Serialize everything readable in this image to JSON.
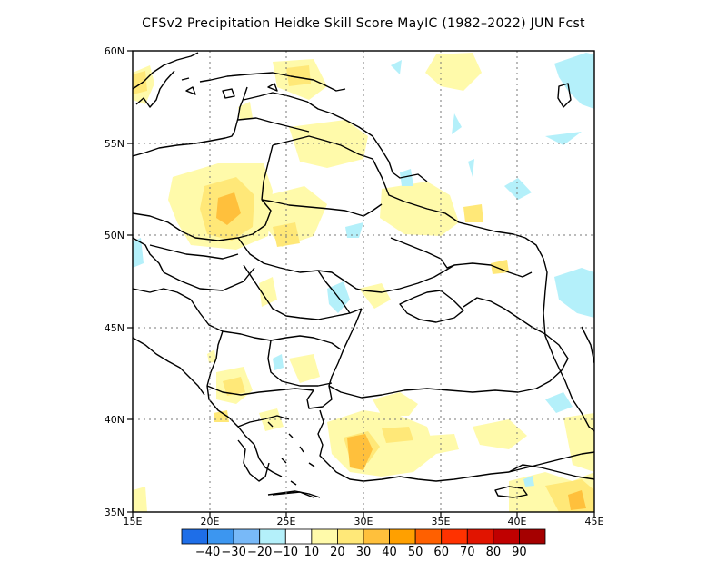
{
  "title": "CFSv2  Precipitation Heidke Skill Score MayIC (1982–2022) JUN Fcst",
  "map": {
    "lon_range": [
      15,
      45
    ],
    "lat_range": [
      35,
      60
    ],
    "lon_ticks": [
      "15E",
      "20E",
      "25E",
      "30E",
      "35E",
      "40E",
      "45E"
    ],
    "lat_ticks": [
      "35N",
      "40N",
      "45N",
      "50N",
      "55N",
      "60N"
    ],
    "gridlines": "dotted"
  },
  "colorbar": {
    "labels": [
      "−40",
      "−30",
      "−20",
      "−10",
      "10",
      "20",
      "30",
      "40",
      "50",
      "60",
      "70",
      "80",
      "90"
    ],
    "colors": [
      "#1e6ee8",
      "#3c96f0",
      "#78b9f8",
      "#b4f0fa",
      "#ffffff",
      "#fffaaa",
      "#ffe878",
      "#ffc03c",
      "#ffa000",
      "#ff6000",
      "#ff3200",
      "#e11400",
      "#c00000",
      "#a50000"
    ]
  }
}
